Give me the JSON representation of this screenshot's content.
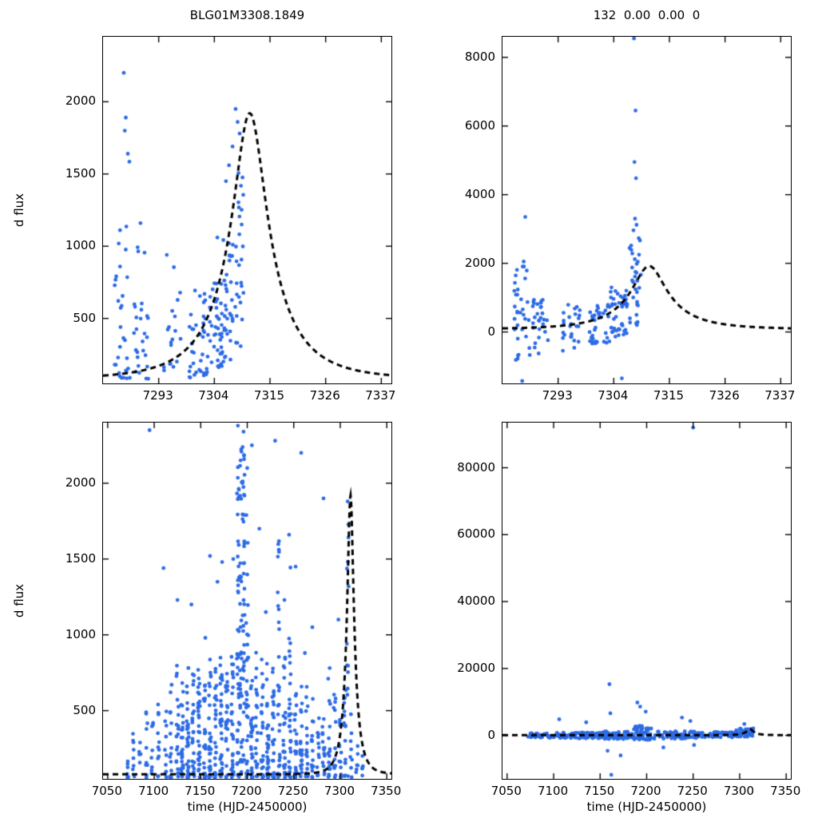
{
  "figure": {
    "background": "#ffffff",
    "point_color": "#2d6be5",
    "curve_color": "#000000",
    "point_radius": 2.4,
    "curve_dash": [
      7,
      5
    ],
    "curve_width": 3
  },
  "chart_data": {
    "type": "scatter",
    "title_left": "BLG01M3308.1849",
    "title_right": "132  0.00  0.00  0",
    "panels": [
      {
        "id": "top-left-zoom-flux",
        "title": "BLG01M3308.1849",
        "ylabel": "d flux",
        "xlabel": null,
        "xlim": [
          7282,
          7339
        ],
        "ylim": [
          50,
          2450
        ],
        "xticks": [
          7293,
          7304,
          7315,
          7326,
          7337
        ],
        "yticks": [
          500,
          1000,
          1500,
          2000
        ],
        "seed": 11,
        "clusters": [
          [
            7284.2,
            7287.4,
            30,
            80,
            1250,
            1.6
          ],
          [
            7288.0,
            7291.0,
            26,
            80,
            1000,
            1.6
          ],
          [
            7293.8,
            7297.6,
            18,
            140,
            950,
            1.5
          ],
          [
            7299.0,
            7303.2,
            42,
            90,
            700,
            1.4
          ],
          [
            7303.4,
            7305.6,
            36,
            150,
            750,
            1.2
          ],
          [
            7305.6,
            7307.6,
            30,
            200,
            1050,
            1.15
          ],
          [
            7307.6,
            7309.8,
            30,
            300,
            1550,
            1.1
          ]
        ],
        "outliers": [
          [
            7286.1,
            2200
          ],
          [
            7286.5,
            1890
          ],
          [
            7286.3,
            1800
          ],
          [
            7286.9,
            1640
          ],
          [
            7287.2,
            1585
          ],
          [
            7289.4,
            1160
          ],
          [
            7290.2,
            955
          ],
          [
            7294.6,
            940
          ],
          [
            7304.6,
            1060
          ],
          [
            7306.3,
            1450
          ],
          [
            7306.9,
            1560
          ],
          [
            7307.6,
            1690
          ],
          [
            7308.2,
            1950
          ],
          [
            7308.6,
            1860
          ],
          [
            7309.0,
            1780
          ],
          [
            7309.4,
            1150
          ]
        ],
        "curve": {
          "t0": 7311,
          "tE": 12,
          "u0": 0.29,
          "fs": 720,
          "fb": 80
        }
      },
      {
        "id": "top-right-zoom-raw",
        "title": "132  0.00  0.00  0",
        "ylabel": null,
        "xlabel": null,
        "xlim": [
          7282,
          7339
        ],
        "ylim": [
          -1500,
          8600
        ],
        "xticks": [
          7293,
          7304,
          7315,
          7326,
          7337
        ],
        "yticks": [
          0,
          2000,
          4000,
          6000,
          8000
        ],
        "seed": 23,
        "clusters": [
          [
            7284.2,
            7287.4,
            34,
            -900,
            2100,
            1.0
          ],
          [
            7288.0,
            7291.0,
            28,
            -700,
            1000,
            1.0
          ],
          [
            7293.8,
            7297.6,
            25,
            -600,
            800,
            1.0
          ],
          [
            7299.0,
            7303.2,
            38,
            -350,
            800,
            1.0
          ],
          [
            7303.4,
            7307.0,
            42,
            -150,
            1300,
            1.0
          ],
          [
            7307.0,
            7309.6,
            32,
            150,
            2900,
            1.1
          ]
        ],
        "outliers": [
          [
            7286.5,
            3350
          ],
          [
            7286.2,
            2050
          ],
          [
            7285.9,
            -1430
          ],
          [
            7305.6,
            -1350
          ],
          [
            7308.0,
            8550
          ],
          [
            7308.3,
            6450
          ],
          [
            7308.1,
            4950
          ],
          [
            7308.4,
            4480
          ],
          [
            7308.2,
            3300
          ],
          [
            7308.5,
            3120
          ],
          [
            7307.9,
            2960
          ],
          [
            7309.0,
            2250
          ]
        ],
        "curve": {
          "t0": 7311,
          "tE": 12,
          "u0": 0.29,
          "fs": 720,
          "fb": 80
        }
      },
      {
        "id": "bottom-left-season-flux",
        "title": null,
        "ylabel": "d flux",
        "xlabel": "time (HJD-2450000)",
        "xlim": [
          7045,
          7355
        ],
        "ylim": [
          50,
          2400
        ],
        "xticks": [
          7050,
          7100,
          7150,
          7200,
          7250,
          7300,
          7350
        ],
        "yticks": [
          500,
          1000,
          1500,
          2000
        ],
        "seed": 37,
        "bands": [
          [
            7072,
            6,
            250
          ],
          [
            7078,
            8,
            350
          ],
          [
            7085,
            5,
            300
          ],
          [
            7092,
            10,
            500
          ],
          [
            7098,
            8,
            450
          ],
          [
            7105,
            12,
            600
          ],
          [
            7112,
            10,
            500
          ],
          [
            7118,
            14,
            700
          ],
          [
            7125,
            20,
            800
          ],
          [
            7130,
            25,
            700
          ],
          [
            7136,
            30,
            800
          ],
          [
            7142,
            25,
            750
          ],
          [
            7148,
            30,
            800
          ],
          [
            7154,
            25,
            700
          ],
          [
            7160,
            30,
            950
          ],
          [
            7166,
            25,
            800
          ],
          [
            7172,
            30,
            850
          ],
          [
            7178,
            25,
            800
          ],
          [
            7184,
            30,
            950
          ],
          [
            7190,
            40,
            2300,
            1.25
          ],
          [
            7193,
            35,
            2250,
            1.3
          ],
          [
            7196,
            40,
            2300,
            1.25
          ],
          [
            7200,
            30,
            1800,
            1.4
          ],
          [
            7205,
            25,
            1000
          ],
          [
            7210,
            20,
            900
          ],
          [
            7216,
            25,
            850
          ],
          [
            7222,
            30,
            900
          ],
          [
            7228,
            25,
            800
          ],
          [
            7234,
            30,
            1700,
            1.5
          ],
          [
            7240,
            25,
            900
          ],
          [
            7246,
            30,
            1650,
            1.5
          ],
          [
            7252,
            25,
            800
          ],
          [
            7258,
            20,
            750
          ],
          [
            7264,
            18,
            700
          ],
          [
            7270,
            15,
            600
          ],
          [
            7276,
            12,
            500
          ],
          [
            7282,
            15,
            600
          ],
          [
            7288,
            18,
            800
          ],
          [
            7294,
            15,
            700
          ],
          [
            7300,
            12,
            600
          ],
          [
            7305,
            15,
            800
          ],
          [
            7308,
            12,
            1900,
            1.4
          ],
          [
            7312,
            8,
            500
          ],
          [
            7318,
            6,
            300
          ],
          [
            7324,
            5,
            250
          ]
        ],
        "outliers": [
          [
            7095,
            2350
          ],
          [
            7110,
            1440
          ],
          [
            7125,
            1230
          ],
          [
            7140,
            1200
          ],
          [
            7155,
            980
          ],
          [
            7160,
            1520
          ],
          [
            7168,
            1350
          ],
          [
            7173,
            1480
          ],
          [
            7185,
            1500
          ],
          [
            7190,
            2380
          ],
          [
            7196,
            2340
          ],
          [
            7200,
            2100
          ],
          [
            7205,
            2250
          ],
          [
            7213,
            1700
          ],
          [
            7220,
            1150
          ],
          [
            7230,
            2280
          ],
          [
            7240,
            1230
          ],
          [
            7245,
            1660
          ],
          [
            7252,
            1450
          ],
          [
            7258,
            2200
          ],
          [
            7262,
            880
          ],
          [
            7270,
            1050
          ],
          [
            7282,
            1900
          ],
          [
            7298,
            1100
          ],
          [
            7308,
            1880
          ]
        ],
        "curve": {
          "t0": 7311,
          "tE": 12,
          "u0": 0.29,
          "fs": 720,
          "fb": 80
        }
      },
      {
        "id": "bottom-right-season-raw",
        "title": null,
        "ylabel": null,
        "xlabel": "time (HJD-2450000)",
        "xlim": [
          7045,
          7355
        ],
        "ylim": [
          -13000,
          93500
        ],
        "xticks": [
          7050,
          7100,
          7150,
          7200,
          7250,
          7300,
          7350
        ],
        "yticks": [
          0,
          20000,
          40000,
          60000,
          80000
        ],
        "seed": 51,
        "clusters": [
          [
            7070,
            7090,
            25,
            -700,
            700,
            1.0
          ],
          [
            7092,
            7120,
            35,
            -800,
            800,
            1.0
          ],
          [
            7122,
            7150,
            60,
            -900,
            900,
            1.0
          ],
          [
            7152,
            7185,
            70,
            -1100,
            1300,
            1.0
          ],
          [
            7186,
            7205,
            60,
            -1300,
            3000,
            1.6
          ],
          [
            7206,
            7260,
            80,
            -1100,
            1300,
            1.0
          ],
          [
            7262,
            7295,
            50,
            -700,
            1000,
            1.0
          ],
          [
            7296,
            7315,
            40,
            -400,
            2200,
            1.4
          ]
        ],
        "outliers": [
          [
            7250,
            92000
          ],
          [
            7160,
            15300
          ],
          [
            7161,
            6600
          ],
          [
            7158,
            -4600
          ],
          [
            7162,
            -11800
          ],
          [
            7172,
            -6000
          ],
          [
            7106,
            4800
          ],
          [
            7135,
            3900
          ],
          [
            7190,
            9800
          ],
          [
            7193,
            8600
          ],
          [
            7199,
            7100
          ],
          [
            7218,
            -3600
          ],
          [
            7238,
            5300
          ],
          [
            7247,
            4300
          ],
          [
            7251,
            -2900
          ],
          [
            7305,
            3400
          ]
        ],
        "curve": {
          "t0": 7311,
          "tE": 12,
          "u0": 0.29,
          "fs": 720,
          "fb": 80
        }
      }
    ]
  }
}
